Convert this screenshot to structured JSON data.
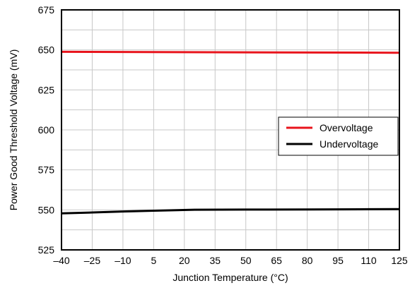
{
  "chart_data": {
    "type": "line",
    "xlabel": "Junction Temperature (°C)",
    "ylabel": "Power Good Threshold Voltage (mV)",
    "x_ticks": [
      "–40",
      "–25",
      "–10",
      "5",
      "20",
      "35",
      "50",
      "65",
      "80",
      "95",
      "110",
      "125"
    ],
    "y_ticks": [
      "525",
      "550",
      "575",
      "600",
      "625",
      "650",
      "675"
    ],
    "xlim": [
      -40,
      125
    ],
    "ylim": [
      525,
      675
    ],
    "grid": true,
    "legend_position": "right",
    "series": [
      {
        "name": "Overvoltage",
        "color": "#e8141c",
        "x": [
          -40,
          125
        ],
        "y": [
          648.8,
          648.2
        ]
      },
      {
        "name": "Undervoltage",
        "color": "#000000",
        "x": [
          -40,
          -25,
          -10,
          5,
          25,
          50,
          80,
          110,
          125
        ],
        "y": [
          547.8,
          548.4,
          549.0,
          549.5,
          550.1,
          550.2,
          550.3,
          550.4,
          550.5
        ]
      }
    ]
  }
}
